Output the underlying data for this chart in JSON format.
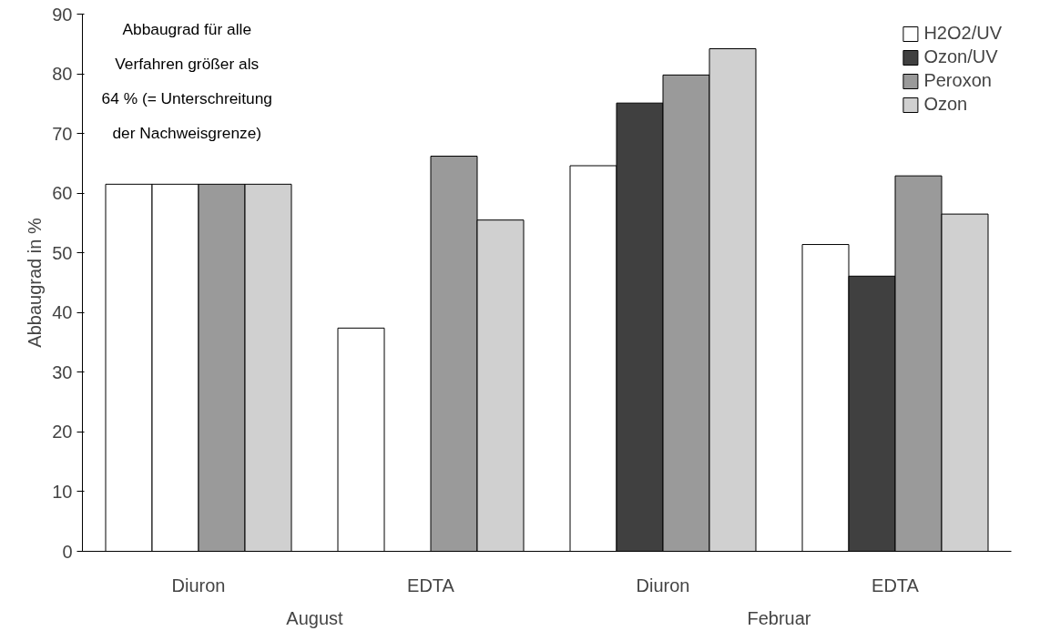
{
  "chart_data": {
    "type": "bar",
    "ylabel": "Abbaugrad in %",
    "categories": [
      "Diuron",
      "EDTA",
      "Diuron",
      "EDTA"
    ],
    "series": [
      {
        "name": "H2O2/UV",
        "color": "#ffffff",
        "values": [
          61.5,
          37.4,
          64.6,
          51.4
        ]
      },
      {
        "name": "Ozon/UV",
        "color": "#404040",
        "colors": [
          "#ffffff",
          "#404040",
          "#404040",
          "#404040"
        ],
        "values": [
          61.5,
          null,
          75.1,
          46.1
        ]
      },
      {
        "name": "Peroxon",
        "color": "#9a9a9a",
        "values": [
          61.5,
          66.2,
          79.8,
          62.9
        ]
      },
      {
        "name": "Ozon",
        "color": "#d0d0d0",
        "values": [
          61.5,
          55.5,
          84.2,
          56.5
        ]
      }
    ],
    "ylim": [
      0,
      90
    ],
    "yticks": [
      0,
      10,
      20,
      30,
      40,
      50,
      60,
      70,
      80,
      90
    ],
    "grid": false,
    "legend": "top right",
    "annotations": [
      "Abbaugrad für alle\nVerfahren größer als\n64 % (= Unterschreitung\nder Nachweisgrenze)",
      "August",
      "Februar"
    ]
  }
}
